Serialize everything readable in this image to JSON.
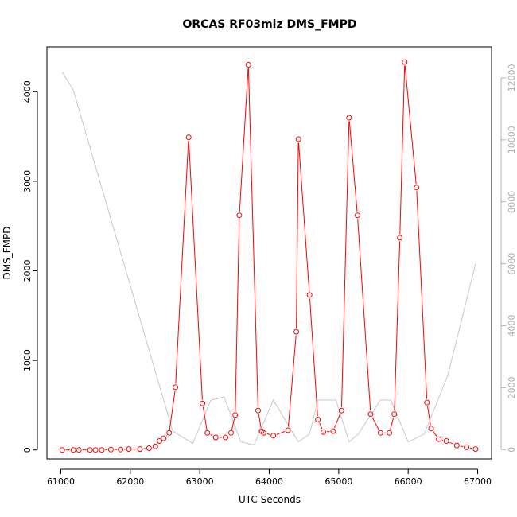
{
  "chart_data": {
    "type": "line",
    "title": "ORCAS RF03miz DMS_FMPD",
    "xlabel": "UTC Seconds",
    "ylabel": "DMS_FMPD",
    "xlim": [
      60800,
      67200
    ],
    "ylim": [
      -100,
      4500
    ],
    "y2lim": [
      -300,
      13000
    ],
    "x_ticks": [
      61000,
      62000,
      63000,
      64000,
      65000,
      66000,
      67000
    ],
    "y_ticks": [
      0,
      1000,
      2000,
      3000,
      4000
    ],
    "y2_ticks": [
      0,
      2000,
      4000,
      6000,
      8000,
      10000,
      12000
    ],
    "grid": false,
    "colors": {
      "primary": "#ff0000",
      "secondary": "#c8c8c8",
      "right_axis": "#b0b0b0"
    },
    "series": [
      {
        "style": "line+points",
        "axis": "left",
        "x": [
          61020,
          61180,
          61260,
          61420,
          61500,
          61590,
          61720,
          61860,
          61980,
          62140,
          62270,
          62360,
          62420,
          62480,
          62560,
          62650,
          62840,
          63040,
          63110,
          63230,
          63370,
          63450,
          63510,
          63570,
          63700,
          63840,
          63890,
          63920,
          64060,
          64270,
          64390,
          64420,
          64580,
          64700,
          64780,
          64920,
          65040,
          65150,
          65270,
          65460,
          65600,
          65730,
          65800,
          65880,
          65950,
          66120,
          66270,
          66330,
          66440,
          66550,
          66700,
          66840,
          66970
        ],
        "y": [
          0,
          0,
          0,
          0,
          0,
          0,
          5,
          5,
          10,
          10,
          20,
          40,
          100,
          130,
          190,
          700,
          3490,
          520,
          190,
          140,
          140,
          190,
          390,
          2620,
          4300,
          440,
          210,
          190,
          160,
          220,
          1320,
          3470,
          1730,
          340,
          200,
          210,
          440,
          3710,
          2620,
          400,
          190,
          190,
          400,
          2370,
          4330,
          2930,
          530,
          240,
          120,
          100,
          50,
          30,
          10
        ]
      },
      {
        "style": "line",
        "axis": "right",
        "x": [
          61020,
          61180,
          62610,
          62900,
          63160,
          63350,
          63590,
          63780,
          64060,
          64420,
          64580,
          64700,
          64960,
          65150,
          65280,
          65600,
          65750,
          66000,
          66230,
          66570,
          66970
        ],
        "y": [
          12200,
          11600,
          600,
          200,
          1600,
          1700,
          250,
          150,
          1600,
          250,
          500,
          1600,
          1600,
          250,
          500,
          1600,
          1600,
          250,
          500,
          2400,
          6000
        ]
      }
    ]
  }
}
